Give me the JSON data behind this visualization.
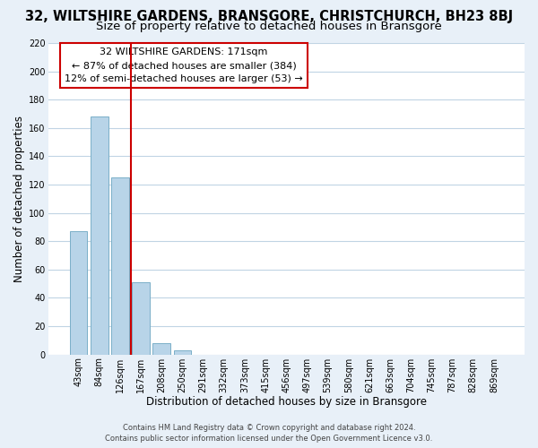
{
  "title": "32, WILTSHIRE GARDENS, BRANSGORE, CHRISTCHURCH, BH23 8BJ",
  "subtitle": "Size of property relative to detached houses in Bransgore",
  "xlabel": "Distribution of detached houses by size in Bransgore",
  "ylabel": "Number of detached properties",
  "bar_labels": [
    "43sqm",
    "84sqm",
    "126sqm",
    "167sqm",
    "208sqm",
    "250sqm",
    "291sqm",
    "332sqm",
    "373sqm",
    "415sqm",
    "456sqm",
    "497sqm",
    "539sqm",
    "580sqm",
    "621sqm",
    "663sqm",
    "704sqm",
    "745sqm",
    "787sqm",
    "828sqm",
    "869sqm"
  ],
  "bar_values": [
    87,
    168,
    125,
    51,
    8,
    3,
    0,
    0,
    0,
    0,
    0,
    0,
    0,
    0,
    0,
    0,
    0,
    0,
    0,
    0,
    0
  ],
  "bar_color": "#b8d4e8",
  "bar_edge_color": "#7aafc8",
  "ylim": [
    0,
    220
  ],
  "yticks": [
    0,
    20,
    40,
    60,
    80,
    100,
    120,
    140,
    160,
    180,
    200,
    220
  ],
  "annotation_box_text_line1": "32 WILTSHIRE GARDENS: 171sqm",
  "annotation_box_text_line2": "← 87% of detached houses are smaller (384)",
  "annotation_box_text_line3": "12% of semi-detached houses are larger (53) →",
  "annotation_box_color": "white",
  "annotation_box_edge_color": "#cc0000",
  "footer_line1": "Contains HM Land Registry data © Crown copyright and database right 2024.",
  "footer_line2": "Contains public sector information licensed under the Open Government Licence v3.0.",
  "background_color": "#e8f0f8",
  "plot_bg_color": "white",
  "grid_color": "#c0d4e4",
  "title_fontsize": 10.5,
  "subtitle_fontsize": 9.5,
  "xlabel_fontsize": 8.5,
  "ylabel_fontsize": 8.5,
  "tick_fontsize": 7,
  "annotation_fontsize": 8,
  "footer_fontsize": 6
}
